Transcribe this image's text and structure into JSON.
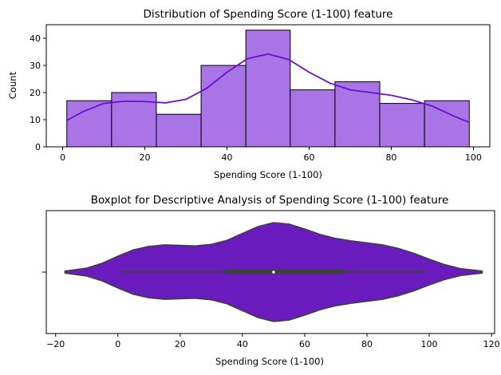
{
  "chart_data": [
    {
      "type": "bar",
      "title": "Distribution of Spending Score (1-100) feature",
      "xlabel": "Spending Score (1-100)",
      "ylabel": "Count",
      "xlim": [
        -4,
        104
      ],
      "ylim": [
        0,
        45
      ],
      "xticks": [
        "0",
        "20",
        "40",
        "60",
        "80",
        "100"
      ],
      "yticks": [
        "0",
        "10",
        "20",
        "30",
        "40"
      ],
      "bin_edges": [
        1,
        11.9,
        22.8,
        33.7,
        44.6,
        55.4,
        66.3,
        77.2,
        88.1,
        99
      ],
      "values": [
        17,
        20,
        12,
        30,
        43,
        21,
        24,
        16,
        17
      ],
      "bar_color": "#a874e6",
      "kde_color": "#6a0fd0",
      "kde": {
        "x": [
          1,
          5,
          10,
          15,
          20,
          25,
          30,
          35,
          40,
          45,
          50,
          55,
          60,
          65,
          70,
          75,
          80,
          85,
          90,
          95,
          99
        ],
        "y": [
          9.7,
          13,
          16,
          16.8,
          16.7,
          16.2,
          17.5,
          21.5,
          27.5,
          32.5,
          34.2,
          32.2,
          27.5,
          23.5,
          21,
          20,
          19,
          17.3,
          15,
          11.5,
          9
        ]
      }
    },
    {
      "type": "violin",
      "title": "Boxplot for Descriptive Analysis of Spending Score (1-100) feature",
      "xlabel": "Spending Score (1-100)",
      "xlim": [
        -23,
        121
      ],
      "xticks": [
        "−20",
        "0",
        "20",
        "40",
        "60",
        "80",
        "100",
        "120"
      ],
      "fill_color": "#6a1bbd",
      "edge_color": "#3f3f3f",
      "box": {
        "whisker_low": 1,
        "q1": 34.75,
        "median": 50,
        "q3": 73,
        "whisker_high": 99
      },
      "density": {
        "x": [
          -17,
          -10,
          -5,
          0,
          5,
          10,
          15,
          20,
          25,
          30,
          35,
          40,
          45,
          50,
          55,
          60,
          65,
          70,
          75,
          80,
          85,
          90,
          95,
          100,
          105,
          110,
          117
        ],
        "w": [
          0.02,
          0.08,
          0.18,
          0.32,
          0.45,
          0.52,
          0.55,
          0.54,
          0.53,
          0.56,
          0.64,
          0.78,
          0.92,
          1.0,
          0.97,
          0.87,
          0.76,
          0.68,
          0.63,
          0.59,
          0.55,
          0.48,
          0.38,
          0.26,
          0.15,
          0.07,
          0.02
        ]
      }
    }
  ]
}
